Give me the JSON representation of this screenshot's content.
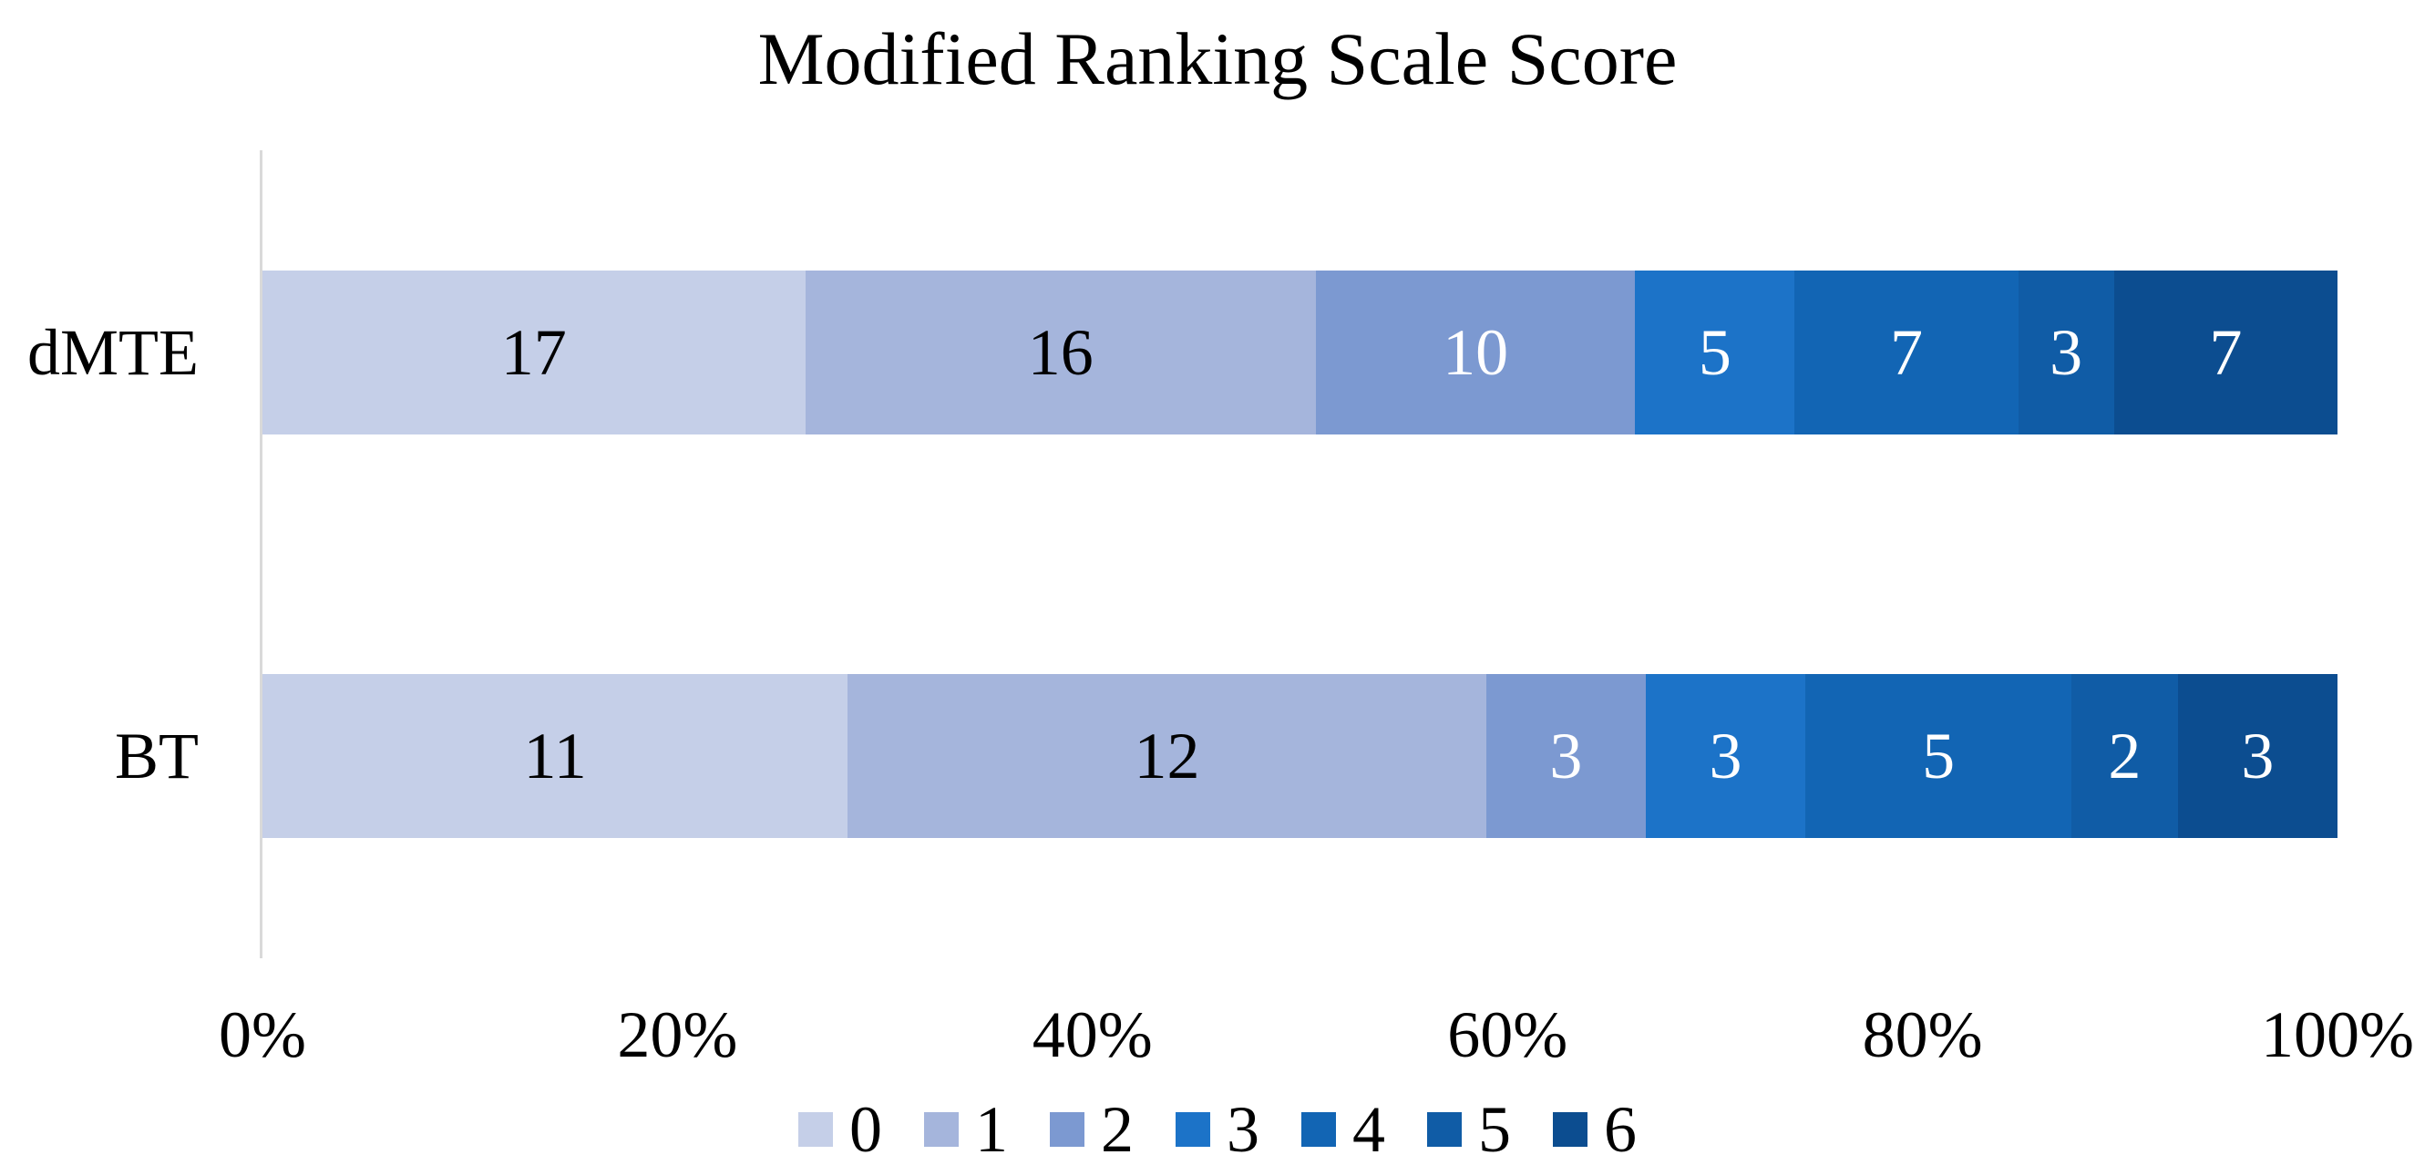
{
  "title": "Modified Ranking Scale Score",
  "chart_data": {
    "type": "bar",
    "subtype": "100%-stacked-horizontal",
    "title": "Modified Ranking Scale Score",
    "categories": [
      "dMTE",
      "BT"
    ],
    "series": [
      {
        "name": "0",
        "color": "#C5CFE8",
        "label_color": "#000000",
        "values": [
          17,
          11
        ]
      },
      {
        "name": "1",
        "color": "#A5B5DC",
        "label_color": "#000000",
        "values": [
          16,
          12
        ]
      },
      {
        "name": "2",
        "color": "#7C99D1",
        "label_color": "#FFFFFF",
        "values": [
          10,
          3
        ]
      },
      {
        "name": "3",
        "color": "#1C73C8",
        "label_color": "#FFFFFF",
        "values": [
          5,
          3
        ]
      },
      {
        "name": "4",
        "color": "#1265B4",
        "label_color": "#FFFFFF",
        "values": [
          7,
          5
        ]
      },
      {
        "name": "5",
        "color": "#105CA6",
        "label_color": "#FFFFFF",
        "values": [
          3,
          2
        ]
      },
      {
        "name": "6",
        "color": "#0C4D90",
        "label_color": "#FFFFFF",
        "values": [
          7,
          3
        ]
      }
    ],
    "x_ticks": [
      "0%",
      "20%",
      "40%",
      "60%",
      "80%",
      "100%"
    ],
    "xlim": [
      0,
      100
    ],
    "grid": false,
    "axis_color": "#D9D9D9",
    "text_color": "#000000",
    "background": "#FFFFFF",
    "legend_position": "bottom",
    "legend_entries": [
      "0",
      "1",
      "2",
      "3",
      "4",
      "5",
      "6"
    ]
  }
}
